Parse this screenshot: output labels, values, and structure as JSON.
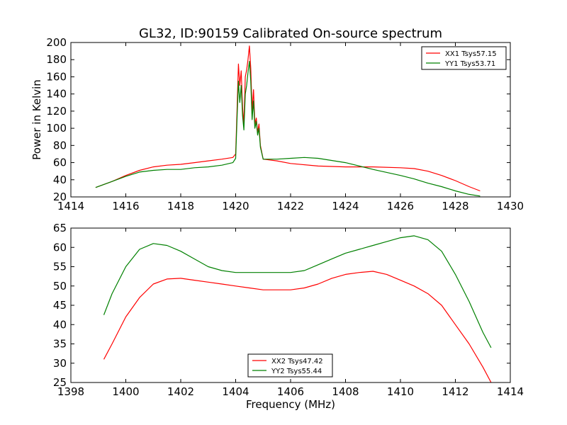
{
  "title": "GL32, ID:90159 Calibrated On-source spectrum",
  "colors": {
    "xx": "#ff0000",
    "yy": "#008000"
  },
  "chart_data": [
    {
      "type": "line",
      "xlabel": "",
      "ylabel": "Power in Kelvin",
      "xlim": [
        1414,
        1430
      ],
      "ylim": [
        20,
        200
      ],
      "xticks": [
        1414,
        1416,
        1418,
        1420,
        1422,
        1424,
        1426,
        1428,
        1430
      ],
      "yticks": [
        20,
        40,
        60,
        80,
        100,
        120,
        140,
        160,
        180,
        200
      ],
      "grid": false,
      "legend_position": "top-right",
      "series": [
        {
          "name": "XX1 Tsys57.15",
          "color": "#ff0000",
          "x": [
            1414.9,
            1415.5,
            1416.0,
            1416.5,
            1417.0,
            1417.5,
            1418.0,
            1418.5,
            1419.0,
            1419.5,
            1419.9,
            1420.0,
            1420.05,
            1420.1,
            1420.15,
            1420.2,
            1420.25,
            1420.3,
            1420.35,
            1420.4,
            1420.45,
            1420.5,
            1420.55,
            1420.6,
            1420.65,
            1420.7,
            1420.75,
            1420.8,
            1420.85,
            1420.9,
            1421.0,
            1421.5,
            1422.0,
            1423.0,
            1424.0,
            1424.5,
            1425.0,
            1426.0,
            1426.5,
            1427.0,
            1427.5,
            1428.0,
            1428.5,
            1428.9
          ],
          "y": [
            31,
            38,
            45,
            51,
            55,
            57,
            58,
            60,
            62,
            64,
            66,
            70,
            120,
            175,
            150,
            167,
            125,
            105,
            160,
            168,
            180,
            196,
            170,
            120,
            145,
            105,
            112,
            95,
            105,
            80,
            64,
            62,
            59,
            56,
            55,
            55,
            55,
            54,
            53,
            50,
            45,
            39,
            32,
            27
          ]
        },
        {
          "name": "YY1 Tsys53.71",
          "color": "#008000",
          "x": [
            1414.9,
            1415.5,
            1416.0,
            1416.5,
            1417.0,
            1417.5,
            1418.0,
            1418.5,
            1419.0,
            1419.5,
            1419.9,
            1420.0,
            1420.05,
            1420.1,
            1420.15,
            1420.2,
            1420.25,
            1420.3,
            1420.35,
            1420.4,
            1420.45,
            1420.5,
            1420.55,
            1420.6,
            1420.65,
            1420.7,
            1420.75,
            1420.8,
            1420.85,
            1420.9,
            1421.0,
            1421.5,
            1422.0,
            1422.5,
            1423.0,
            1424.0,
            1425.0,
            1426.0,
            1426.5,
            1427.0,
            1427.5,
            1428.0,
            1428.5,
            1428.9
          ],
          "y": [
            31,
            38,
            44,
            49,
            51,
            52,
            52,
            54,
            55,
            57,
            60,
            65,
            110,
            155,
            130,
            150,
            115,
            98,
            140,
            150,
            165,
            178,
            155,
            110,
            132,
            100,
            108,
            92,
            100,
            78,
            64,
            64,
            65,
            66,
            65,
            60,
            52,
            45,
            41,
            36,
            32,
            27,
            23,
            21
          ]
        }
      ]
    },
    {
      "type": "line",
      "xlabel": "Frequency (MHz)",
      "ylabel": "",
      "xlim": [
        1398,
        1414
      ],
      "ylim": [
        25,
        65
      ],
      "xticks": [
        1398,
        1400,
        1402,
        1404,
        1406,
        1408,
        1410,
        1412,
        1414
      ],
      "yticks": [
        25,
        30,
        35,
        40,
        45,
        50,
        55,
        60,
        65
      ],
      "grid": false,
      "legend_position": "bottom-center",
      "series": [
        {
          "name": "XX2 Tsys47.42",
          "color": "#ff0000",
          "x": [
            1399.2,
            1399.5,
            1400.0,
            1400.5,
            1401.0,
            1401.5,
            1402.0,
            1402.5,
            1403.0,
            1403.5,
            1404.0,
            1404.5,
            1405.0,
            1405.5,
            1406.0,
            1406.5,
            1407.0,
            1407.5,
            1408.0,
            1408.5,
            1409.0,
            1409.5,
            1410.0,
            1410.5,
            1411.0,
            1411.5,
            1412.0,
            1412.5,
            1413.0,
            1413.3
          ],
          "y": [
            31,
            35,
            42,
            47,
            50.5,
            51.8,
            52,
            51.5,
            51,
            50.5,
            50,
            49.5,
            49,
            49,
            49,
            49.5,
            50.5,
            52,
            53,
            53.5,
            53.8,
            53,
            51.5,
            50,
            48,
            45,
            40,
            35,
            29,
            25
          ]
        },
        {
          "name": "YY2 Tsys55.44",
          "color": "#008000",
          "x": [
            1399.2,
            1399.5,
            1400.0,
            1400.5,
            1401.0,
            1401.5,
            1402.0,
            1402.5,
            1403.0,
            1403.5,
            1404.0,
            1404.5,
            1405.0,
            1405.5,
            1406.0,
            1406.5,
            1407.0,
            1407.5,
            1408.0,
            1408.5,
            1409.0,
            1409.5,
            1410.0,
            1410.5,
            1411.0,
            1411.5,
            1412.0,
            1412.5,
            1413.0,
            1413.3
          ],
          "y": [
            42.5,
            48,
            55,
            59.5,
            61,
            60.5,
            59,
            57,
            55,
            54,
            53.5,
            53.5,
            53.5,
            53.5,
            53.5,
            54,
            55.5,
            57,
            58.5,
            59.5,
            60.5,
            61.5,
            62.5,
            63,
            62,
            59,
            53,
            46,
            38,
            34
          ]
        }
      ]
    }
  ]
}
